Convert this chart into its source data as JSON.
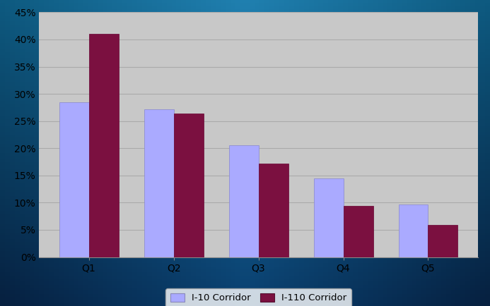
{
  "categories": [
    "Q1",
    "Q2",
    "Q3",
    "Q4",
    "Q5"
  ],
  "i10_values": [
    0.285,
    0.272,
    0.205,
    0.145,
    0.096
  ],
  "i110_values": [
    0.41,
    0.264,
    0.172,
    0.094,
    0.059
  ],
  "i10_color": "#aaaaff",
  "i110_color": "#7b1040",
  "plot_bg_color": "#c8c8c8",
  "ylim": [
    0,
    0.45
  ],
  "yticks": [
    0.0,
    0.05,
    0.1,
    0.15,
    0.2,
    0.25,
    0.3,
    0.35,
    0.4,
    0.45
  ],
  "ytick_labels": [
    "0%",
    "5%",
    "10%",
    "15%",
    "20%",
    "25%",
    "30%",
    "35%",
    "40%",
    "45%"
  ],
  "legend_labels": [
    "I-10 Corridor",
    "I-110 Corridor"
  ],
  "bar_width": 0.35,
  "grid_color": "#aaaaaa",
  "tick_fontsize": 10,
  "legend_fontsize": 9.5,
  "bg_left": "#1e7aaa",
  "bg_center": "#1e80b0",
  "bg_right": "#145a80",
  "bg_bottom_left": "#0e4a70",
  "bg_bottom_center": "#1060a0",
  "bg_bottom_right": "#0a3868"
}
